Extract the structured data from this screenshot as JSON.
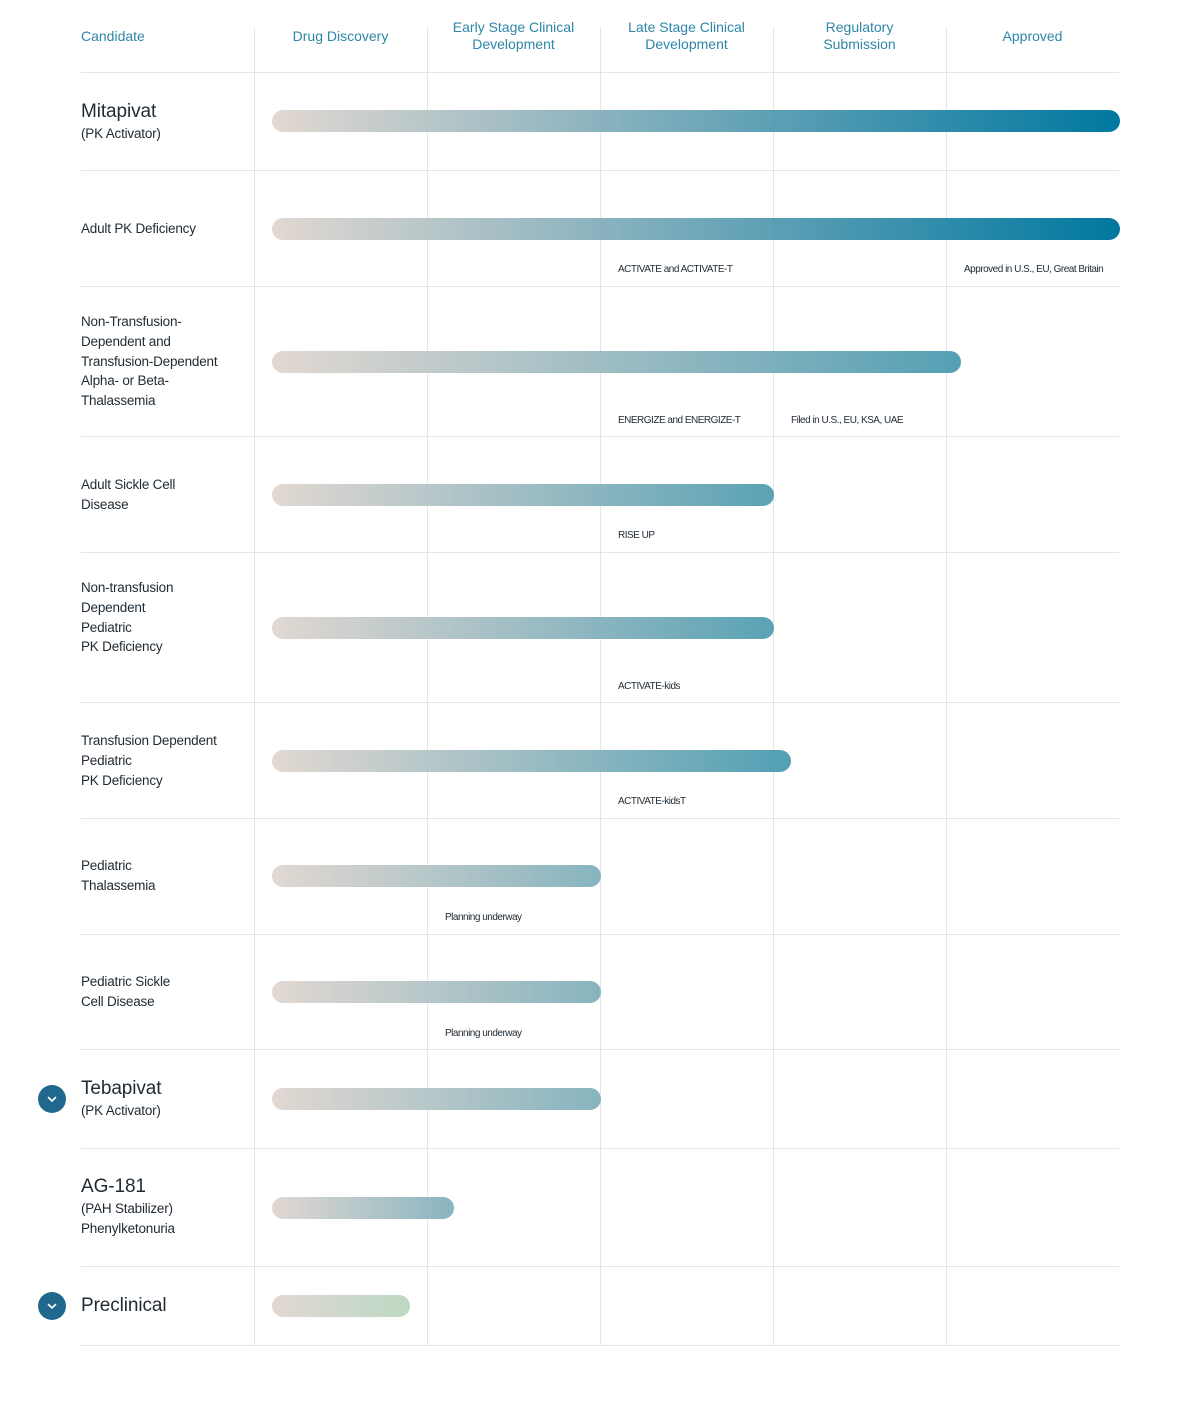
{
  "chart_data": {
    "type": "bar",
    "title": "",
    "columns": [
      "Candidate",
      "Drug Discovery",
      "Early Stage Clinical Development",
      "Late Stage Clinical Development",
      "Regulatory Submission",
      "Approved"
    ],
    "stages": [
      "Drug Discovery",
      "Early Stage Clinical Development",
      "Late Stage Clinical Development",
      "Regulatory Submission",
      "Approved"
    ],
    "value_unit": "stages completed (0 to 5)",
    "rows": [
      {
        "id": "mitapivat",
        "title": "Mitapivat",
        "subtitle": "(PK Activator)",
        "progress": 4.9,
        "annotations": [],
        "expandable": false,
        "color_end": "#0078a0"
      },
      {
        "id": "adult-pk-deficiency",
        "label": "Adult PK Deficiency",
        "progress": 4.9,
        "annotations": [
          {
            "stage_index": 2,
            "text": "ACTIVATE and ACTIVATE-T"
          },
          {
            "stage_index": 4,
            "text": "Approved in U.S., EU, Great Britain"
          }
        ],
        "color_end": "#0078a0"
      },
      {
        "id": "thalassemia",
        "label": "Non-Transfusion-\nDependent and\nTransfusion-Dependent\nAlpha- or Beta-\nThalassemia",
        "progress": 3.98,
        "annotations": [
          {
            "stage_index": 2,
            "text": "ENERGIZE and ENERGIZE-T"
          },
          {
            "stage_index": 3,
            "text": "Filed in U.S., EU, KSA, UAE"
          }
        ],
        "color_end": "#55a0b4"
      },
      {
        "id": "adult-sickle-cell",
        "label": "Adult Sickle Cell\nDisease",
        "progress": 2.9,
        "annotations": [
          {
            "stage_index": 2,
            "text": "RISE UP"
          }
        ],
        "color_end": "#5aa2b5"
      },
      {
        "id": "ntd-pediatric-pk",
        "label": "Non-transfusion\nDependent\nPediatric\nPK Deficiency",
        "progress": 2.9,
        "annotations": [
          {
            "stage_index": 2,
            "text": "ACTIVATE-kids"
          }
        ],
        "color_end": "#5aa2b5"
      },
      {
        "id": "td-pediatric-pk",
        "label": "Transfusion Dependent\nPediatric\nPK Deficiency",
        "progress": 3.0,
        "annotations": [
          {
            "stage_index": 2,
            "text": "ACTIVATE-kidsT"
          }
        ],
        "color_end": "#52a0b4"
      },
      {
        "id": "pediatric-thalassemia",
        "label": "Pediatric\nThalassemia",
        "progress": 1.9,
        "annotations": [
          {
            "stage_index": 1,
            "text": "Planning underway"
          }
        ],
        "color_end": "#86b4bf"
      },
      {
        "id": "pediatric-sickle-cell",
        "label": "Pediatric Sickle\nCell Disease",
        "progress": 1.9,
        "annotations": [
          {
            "stage_index": 1,
            "text": "Planning underway"
          }
        ],
        "color_end": "#86b4bf"
      },
      {
        "id": "tebapivat",
        "title": "Tebapivat",
        "subtitle": "(PK Activator)",
        "progress": 1.9,
        "annotations": [],
        "expandable": true,
        "color_end": "#86b4bf"
      },
      {
        "id": "ag-181",
        "title": "AG-181",
        "subtitle": "(PAH Stabilizer)\nPhenylketonuria",
        "progress": 1.05,
        "annotations": [],
        "expandable": false,
        "color_end": "#88b5c0"
      },
      {
        "id": "preclinical",
        "title": "Preclinical",
        "progress": 0.8,
        "annotations": [],
        "expandable": true,
        "color_end": "#bcd8c3"
      }
    ]
  },
  "colors": {
    "header_text": "#2e86a8",
    "bar_start": "#e2d8d2",
    "grid": "#e3e6e8",
    "toggle": "#21688f"
  }
}
